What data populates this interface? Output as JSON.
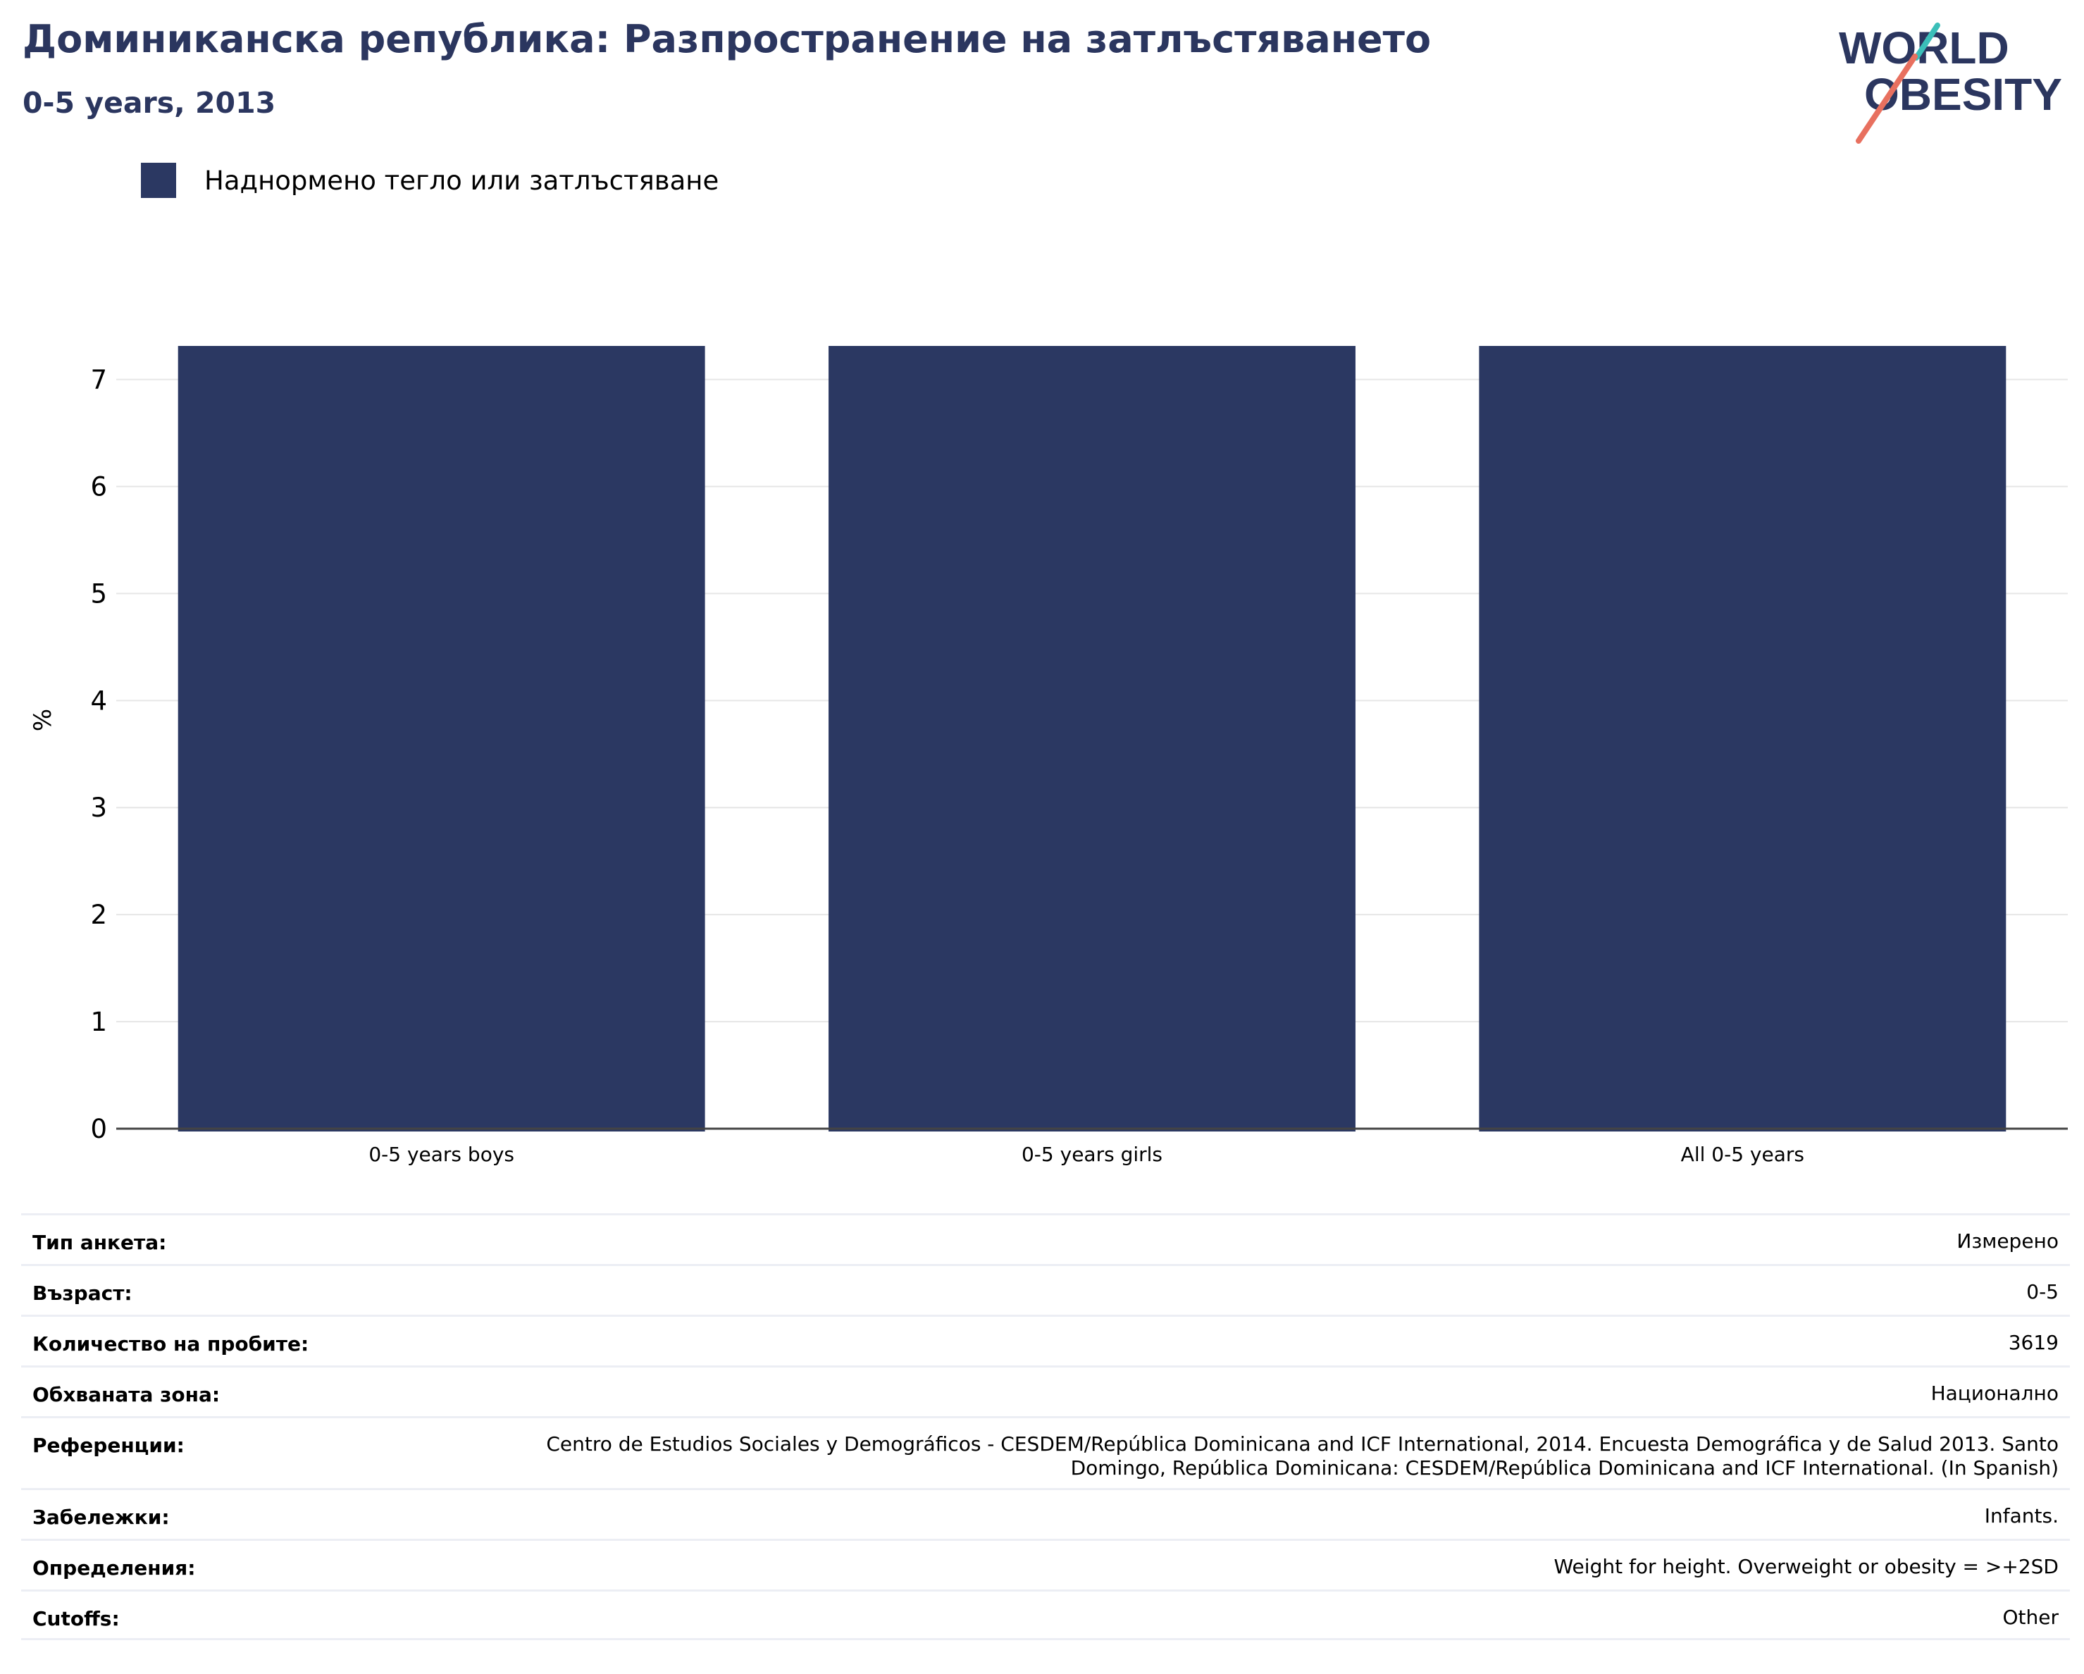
{
  "header": {
    "title": "Доминиканска република: Разпространение на затлъстяването",
    "subtitle": "0-5 years, 2013"
  },
  "logo": {
    "line1": "WORLD",
    "line2": "OBESITY",
    "name": "world-obesity-logo"
  },
  "colors": {
    "bar": "#2b3862",
    "title": "#2b365f",
    "grid": "#e6e6e6",
    "logo_teal": "#3bbfb9",
    "logo_coral": "#e8705f"
  },
  "legend": {
    "label": "Наднормено тегло или затлъстяване"
  },
  "chart_data": {
    "type": "bar",
    "title": "Доминиканска република: Разпространение на затлъстяването",
    "subtitle": "0-5 years, 2013",
    "categories": [
      "0-5 years boys",
      "0-5 years girls",
      "All 0-5 years"
    ],
    "series": [
      {
        "name": "Наднормено тегло или затлъстяване",
        "values": [
          7.3,
          7.3,
          7.3
        ]
      }
    ],
    "xlabel": "",
    "ylabel": "%",
    "ylim": [
      0,
      7.3
    ],
    "yticks": [
      0,
      1,
      2,
      3,
      4,
      5,
      6,
      7
    ],
    "grid": true,
    "legend_position": "top-left"
  },
  "info": {
    "rows": [
      {
        "label": "Тип анкета:",
        "value": "Измерено"
      },
      {
        "label": "Възраст:",
        "value": "0-5"
      },
      {
        "label": "Количество на пробите:",
        "value": "3619"
      },
      {
        "label": "Обхваната зона:",
        "value": "Национално"
      },
      {
        "label": "Референции:",
        "value": "Centro de Estudios Sociales y Demográficos - CESDEM/República Dominicana and ICF International, 2014. Encuesta Demográfica y de Salud 2013. Santo Domingo, República Dominicana: CESDEM/República Dominicana and ICF International. (In Spanish)"
      },
      {
        "label": "Забележки:",
        "value": "Infants."
      },
      {
        "label": "Определения:",
        "value": "Weight for height. Overweight or obesity = >+2SD"
      },
      {
        "label": "Cutoffs:",
        "value": "Other"
      }
    ]
  }
}
